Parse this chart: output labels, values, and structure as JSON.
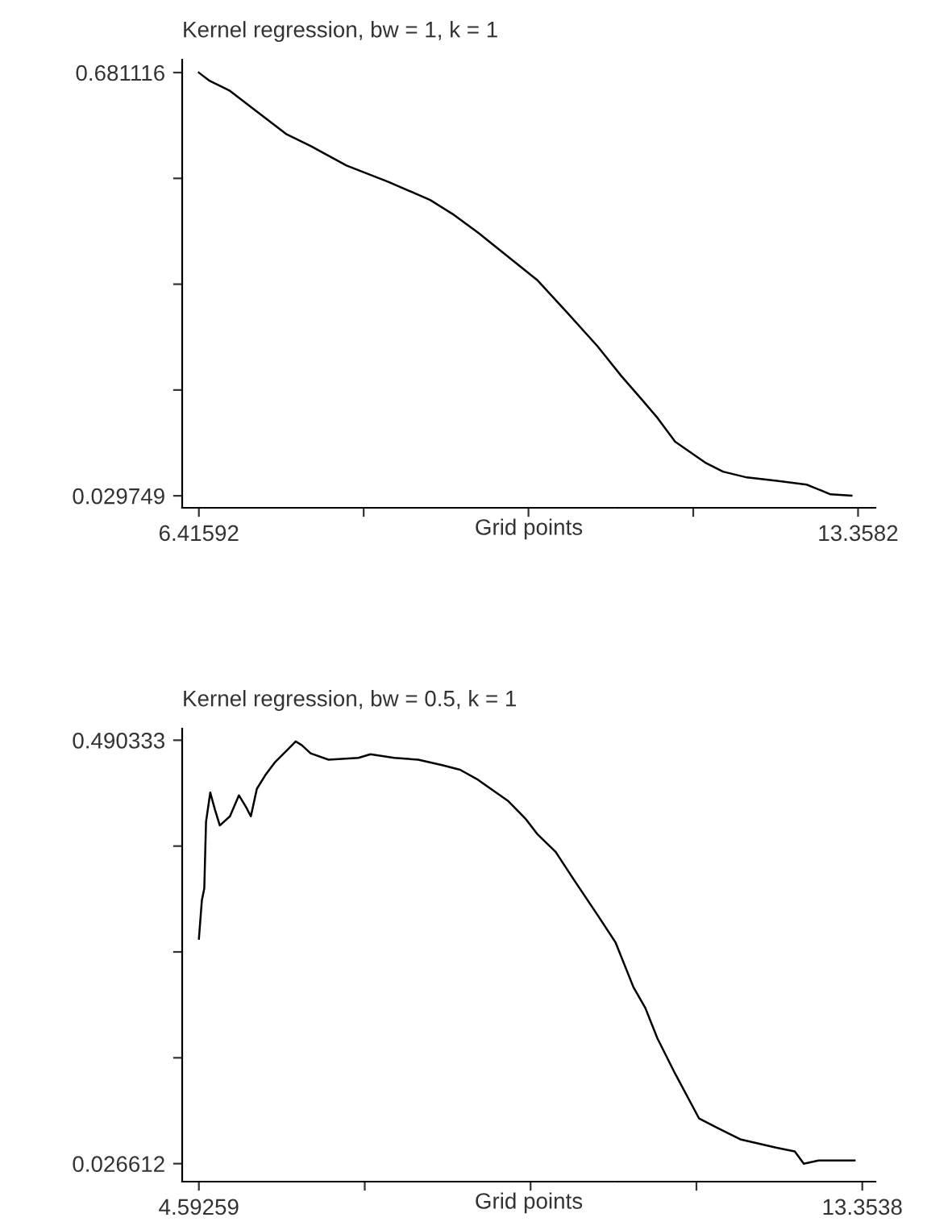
{
  "chart_data": [
    {
      "type": "line",
      "title": "Kernel regression, bw = 1, k = 1",
      "xlabel": "Grid points",
      "x": [
        6.416,
        6.523,
        6.743,
        6.964,
        7.341,
        7.593,
        7.971,
        8.411,
        8.852,
        9.103,
        9.355,
        9.67,
        9.985,
        10.299,
        10.614,
        10.866,
        11.086,
        11.244,
        11.432,
        11.747,
        11.936,
        12.188,
        12.502,
        12.817,
        13.069,
        13.289
      ],
      "series": [
        {
          "color": "#000000",
          "values": [
            0.681,
            0.669,
            0.653,
            0.628,
            0.586,
            0.568,
            0.538,
            0.513,
            0.485,
            0.462,
            0.435,
            0.398,
            0.361,
            0.311,
            0.26,
            0.214,
            0.177,
            0.15,
            0.113,
            0.081,
            0.067,
            0.058,
            0.053,
            0.047,
            0.032,
            0.03
          ]
        }
      ],
      "xlim": [
        6.24,
        13.541
      ],
      "ylim": [
        0.0113,
        0.701
      ],
      "xticks": [
        6.41592,
        {
          "value": 8.15149,
          "label": null
        },
        {
          "value": 9.88706,
          "label": null
        },
        {
          "value": 11.62263,
          "label": null
        },
        13.3582
      ],
      "yticks": [
        0.029749,
        {
          "value": 0.192591,
          "label": null
        },
        {
          "value": 0.355433,
          "label": null
        },
        {
          "value": 0.518274,
          "label": null
        },
        0.681116
      ],
      "grid": false,
      "legend": false
    },
    {
      "type": "line",
      "title": "Kernel regression, bw = 0.5, k = 1",
      "xlabel": "Grid points",
      "x": [
        4.593,
        4.632,
        4.664,
        4.687,
        4.743,
        4.806,
        4.869,
        5.003,
        5.121,
        5.216,
        5.279,
        5.358,
        5.477,
        5.595,
        5.753,
        5.871,
        5.95,
        6.068,
        6.305,
        6.7,
        6.858,
        7.173,
        7.489,
        7.805,
        8.042,
        8.279,
        8.673,
        8.91,
        9.068,
        9.304,
        9.541,
        9.857,
        10.094,
        10.331,
        10.489,
        10.647,
        10.883,
        11.199,
        11.436,
        11.752,
        12.225,
        12.462,
        12.581,
        12.778,
        13.251
      ],
      "series": [
        {
          "color": "#000000",
          "values": [
            0.273,
            0.315,
            0.328,
            0.401,
            0.433,
            0.414,
            0.397,
            0.407,
            0.43,
            0.417,
            0.407,
            0.437,
            0.453,
            0.466,
            0.479,
            0.489,
            0.485,
            0.476,
            0.469,
            0.471,
            0.475,
            0.471,
            0.469,
            0.463,
            0.458,
            0.447,
            0.424,
            0.404,
            0.387,
            0.368,
            0.338,
            0.299,
            0.269,
            0.22,
            0.197,
            0.164,
            0.125,
            0.076,
            0.066,
            0.053,
            0.044,
            0.04,
            0.0266,
            0.03,
            0.03
          ]
        }
      ],
      "xlim": [
        4.372,
        13.527
      ],
      "ylim": [
        0.0069,
        0.503
      ],
      "xticks": [
        4.59259,
        {
          "value": 6.78289,
          "label": null
        },
        {
          "value": 8.9732,
          "label": null
        },
        {
          "value": 11.1635,
          "label": null
        },
        13.3538
      ],
      "yticks": [
        0.026612,
        {
          "value": 0.142542,
          "label": null
        },
        {
          "value": 0.258473,
          "label": null
        },
        {
          "value": 0.374403,
          "label": null
        },
        0.490333
      ],
      "grid": false,
      "legend": false
    }
  ]
}
